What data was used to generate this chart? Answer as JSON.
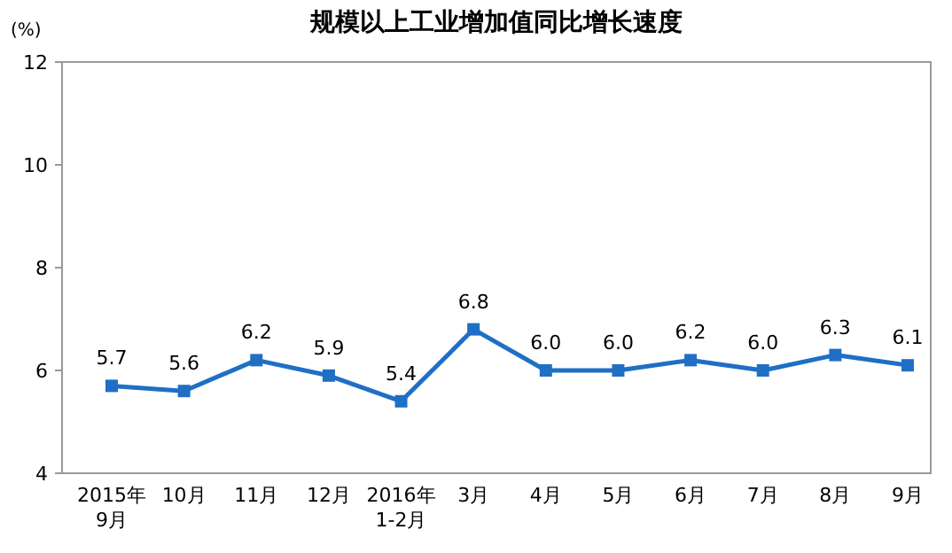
{
  "chart_data": {
    "type": "line",
    "title": "规模以上工业增加值同比增长速度",
    "ylabel": "(%)",
    "categories": [
      "2015年\n9月",
      "10月",
      "11月",
      "12月",
      "2016年\n1-2月",
      "3月",
      "4月",
      "5月",
      "6月",
      "7月",
      "8月",
      "9月"
    ],
    "series": [
      {
        "color": "#1f6fc5",
        "values": [
          5.7,
          5.6,
          6.2,
          5.9,
          5.4,
          6.8,
          6.0,
          6.0,
          6.2,
          6.0,
          6.3,
          6.1
        ],
        "value_labels": [
          "5.7",
          "5.6",
          "6.2",
          "5.9",
          "5.4",
          "6.8",
          "6.0",
          "6.0",
          "6.2",
          "6.0",
          "6.3",
          "6.1"
        ]
      }
    ],
    "ylim": [
      4,
      12
    ],
    "yticks": [
      4,
      6,
      8,
      10,
      12
    ],
    "marker": "square"
  }
}
